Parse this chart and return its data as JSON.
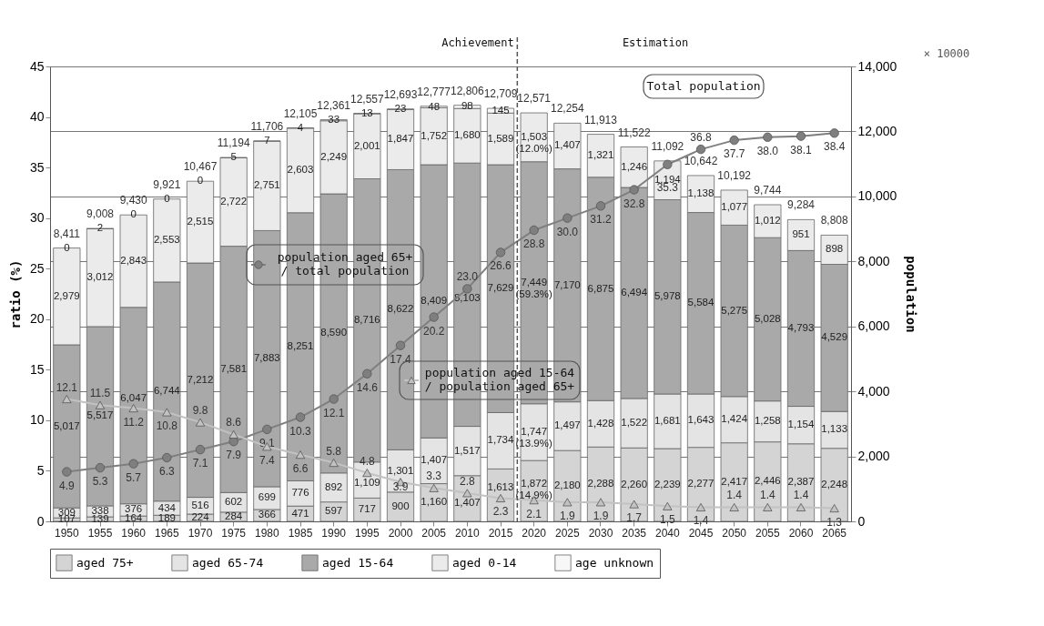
{
  "chart_data": {
    "type": "bar",
    "stacked": true,
    "ylabel": "ratio (%)",
    "y2label": "population",
    "legend": "bottom",
    "grid": "y",
    "categories": [
      "1950",
      "1955",
      "1960",
      "1965",
      "1970",
      "1975",
      "1980",
      "1985",
      "1990",
      "1995",
      "2000",
      "2005",
      "2010",
      "2015",
      "2020",
      "2025",
      "2030",
      "2035",
      "2040",
      "2045",
      "2050",
      "2055",
      "2060",
      "2065"
    ],
    "ylim": [
      0,
      45
    ],
    "yticks": [
      0,
      5,
      10,
      15,
      20,
      25,
      30,
      35,
      40,
      45
    ],
    "y2lim": [
      0,
      14000
    ],
    "y2ticks": [
      0,
      {
        "value": 2000,
        "label": "2,000"
      },
      {
        "value": 4000,
        "label": "4,000"
      },
      {
        "value": 6000,
        "label": "6,000"
      },
      {
        "value": 8000,
        "label": "8,000"
      },
      {
        "value": 10000,
        "label": "10,000"
      },
      {
        "value": 12000,
        "label": "12,000"
      },
      {
        "value": 14000,
        "label": "14,000"
      }
    ],
    "series": [
      {
        "name": "aged 75+",
        "axis": "y2",
        "color": "#d4d4d4",
        "values": [
          107,
          139,
          164,
          189,
          224,
          284,
          366,
          471,
          597,
          717,
          900,
          1160,
          1407,
          1613,
          1872,
          2180,
          2288,
          2260,
          2239,
          2277,
          2417,
          2446,
          2387,
          2248
        ],
        "value_labels": [
          "107",
          "139",
          "164",
          "189",
          "224",
          "284",
          "366",
          "471",
          "597",
          "717",
          "900",
          "1,160",
          "1,407",
          "1,613",
          "1,872 (14.9%)",
          "2,180",
          "2,288",
          "2,260",
          "2,239",
          "2,277",
          "2,417",
          "2,446",
          "2,387",
          "2,248"
        ]
      },
      {
        "name": "aged 65-74",
        "axis": "y2",
        "color": "#e4e4e4",
        "values": [
          309,
          338,
          376,
          434,
          516,
          602,
          699,
          776,
          892,
          1109,
          1301,
          1407,
          1517,
          1734,
          1747,
          1497,
          1428,
          1522,
          1681,
          1643,
          1424,
          1258,
          1154,
          1133
        ],
        "value_labels": [
          "309",
          "338",
          "376",
          "434",
          "516",
          "602",
          "699",
          "776",
          "892",
          "1,109",
          "1,301",
          "1,407",
          "1,517",
          "1,734",
          "1,747 (13.9%)",
          "1,497",
          "1,428",
          "1,522",
          "1,681",
          "1,643",
          "1,424",
          "1,258",
          "1,154",
          "1,133"
        ]
      },
      {
        "name": "aged 15-64",
        "axis": "y2",
        "color": "#a9a9a9",
        "values": [
          5017,
          5517,
          6047,
          6744,
          7212,
          7581,
          7883,
          8251,
          8590,
          8716,
          8622,
          8409,
          8103,
          7629,
          7449,
          7170,
          6875,
          6494,
          5978,
          5584,
          5275,
          5028,
          4793,
          4529
        ],
        "value_labels": [
          "5,017",
          "5,517",
          "6,047",
          "6,744",
          "7,212",
          "7,581",
          "7,883",
          "8,251",
          "8,590",
          "8,716",
          "8,622",
          "8,409",
          "8,103",
          "7,629",
          "7,449 (59.3%)",
          "7,170",
          "6,875",
          "6,494",
          "5,978",
          "5,584",
          "5,275",
          "5,028",
          "4,793",
          "4,529"
        ]
      },
      {
        "name": "aged 0-14",
        "axis": "y2",
        "color": "#ebebeb",
        "values": [
          2979,
          3012,
          2843,
          2553,
          2515,
          2722,
          2751,
          2603,
          2249,
          2001,
          1847,
          1752,
          1680,
          1589,
          1503,
          1407,
          1321,
          1246,
          1194,
          1138,
          1077,
          1012,
          951,
          898
        ],
        "value_labels": [
          "2,979",
          "3,012",
          "2,843",
          "2,553",
          "2,515",
          "2,722",
          "2,751",
          "2,603",
          "2,249",
          "2,001",
          "1,847",
          "1,752",
          "1,680",
          "1,589",
          "1,503 (12.0%)",
          "1,407",
          "1,321",
          "1,246",
          "1,194",
          "1,138",
          "1,077",
          "1,012",
          "951",
          "898"
        ]
      },
      {
        "name": "age unknown",
        "axis": "y2",
        "color": "#f7f7f7",
        "values": [
          0,
          2,
          0,
          0,
          0,
          5,
          7,
          4,
          33,
          13,
          23,
          48,
          98,
          145,
          null,
          null,
          null,
          null,
          null,
          null,
          null,
          null,
          null,
          null
        ],
        "value_labels": [
          "0",
          "2",
          "0",
          "0",
          "0",
          "5",
          "7",
          "4",
          "33",
          "13",
          "23",
          "48",
          "98",
          "145",
          null,
          null,
          null,
          null,
          null,
          null,
          null,
          null,
          null,
          null
        ]
      },
      {
        "name": "population aged 65+\n/ total population",
        "type": "line",
        "axis": "y",
        "marker": "circle",
        "color": "#7f7f7f",
        "values": [
          4.9,
          5.3,
          5.7,
          6.3,
          7.1,
          7.9,
          9.1,
          10.3,
          12.1,
          14.6,
          17.4,
          20.2,
          23.0,
          26.6,
          28.8,
          30.0,
          31.2,
          32.8,
          35.3,
          36.8,
          37.7,
          38.0,
          38.1,
          38.4
        ],
        "value_labels": [
          "4.9",
          "5.3",
          "5.7",
          "6.3",
          "7.1",
          "7.9",
          "9.1",
          "10.3",
          "12.1",
          "14.6",
          "17.4",
          "20.2",
          "23.0",
          "26.6",
          "28.8",
          "30.0",
          "31.2",
          "32.8",
          "35.3",
          "36.8",
          "37.7",
          "38.0",
          "38.1",
          "38.4"
        ]
      },
      {
        "name": "population aged 15-64\n/ population aged 65+",
        "type": "line",
        "axis": "y",
        "marker": "triangle",
        "color": "#c2c2c2",
        "values": [
          12.1,
          11.5,
          11.2,
          10.8,
          9.8,
          8.6,
          7.4,
          6.6,
          5.8,
          4.8,
          3.9,
          3.3,
          2.8,
          2.3,
          2.1,
          1.9,
          1.9,
          1.7,
          1.5,
          1.4,
          1.4,
          1.4,
          1.4,
          1.3
        ],
        "value_labels": [
          "12.1",
          "11.5",
          "11.2",
          "10.8",
          "9.8",
          "8.6",
          "7.4",
          "6.6",
          "5.8",
          "4.8",
          "3.9",
          "3.3",
          "2.8",
          "2.3",
          "2.1",
          "1.9",
          "1.9",
          "1.7",
          "1.5",
          "1.4",
          "1.4",
          "1.4",
          "1.4",
          "1.3"
        ]
      }
    ],
    "totals": [
      "8,411",
      "9,008",
      "9,430",
      "9,921",
      "10,467",
      "11,194",
      "11,706",
      "12,105",
      "12,361",
      "12,557",
      "12,693",
      "12,777",
      "12,806",
      "12,709",
      "12,571",
      "12,254",
      "11,913",
      "11,522",
      "11,092",
      "10,642",
      "10,192",
      "9,744",
      "9,284",
      "8,808"
    ],
    "ref_lines": [
      {
        "axis": "x",
        "value": "2020",
        "line_style": "dashed",
        "color": "#555555"
      }
    ],
    "annotations": [
      "Achievement",
      "Estimation",
      "× 10000",
      "Total population"
    ]
  }
}
